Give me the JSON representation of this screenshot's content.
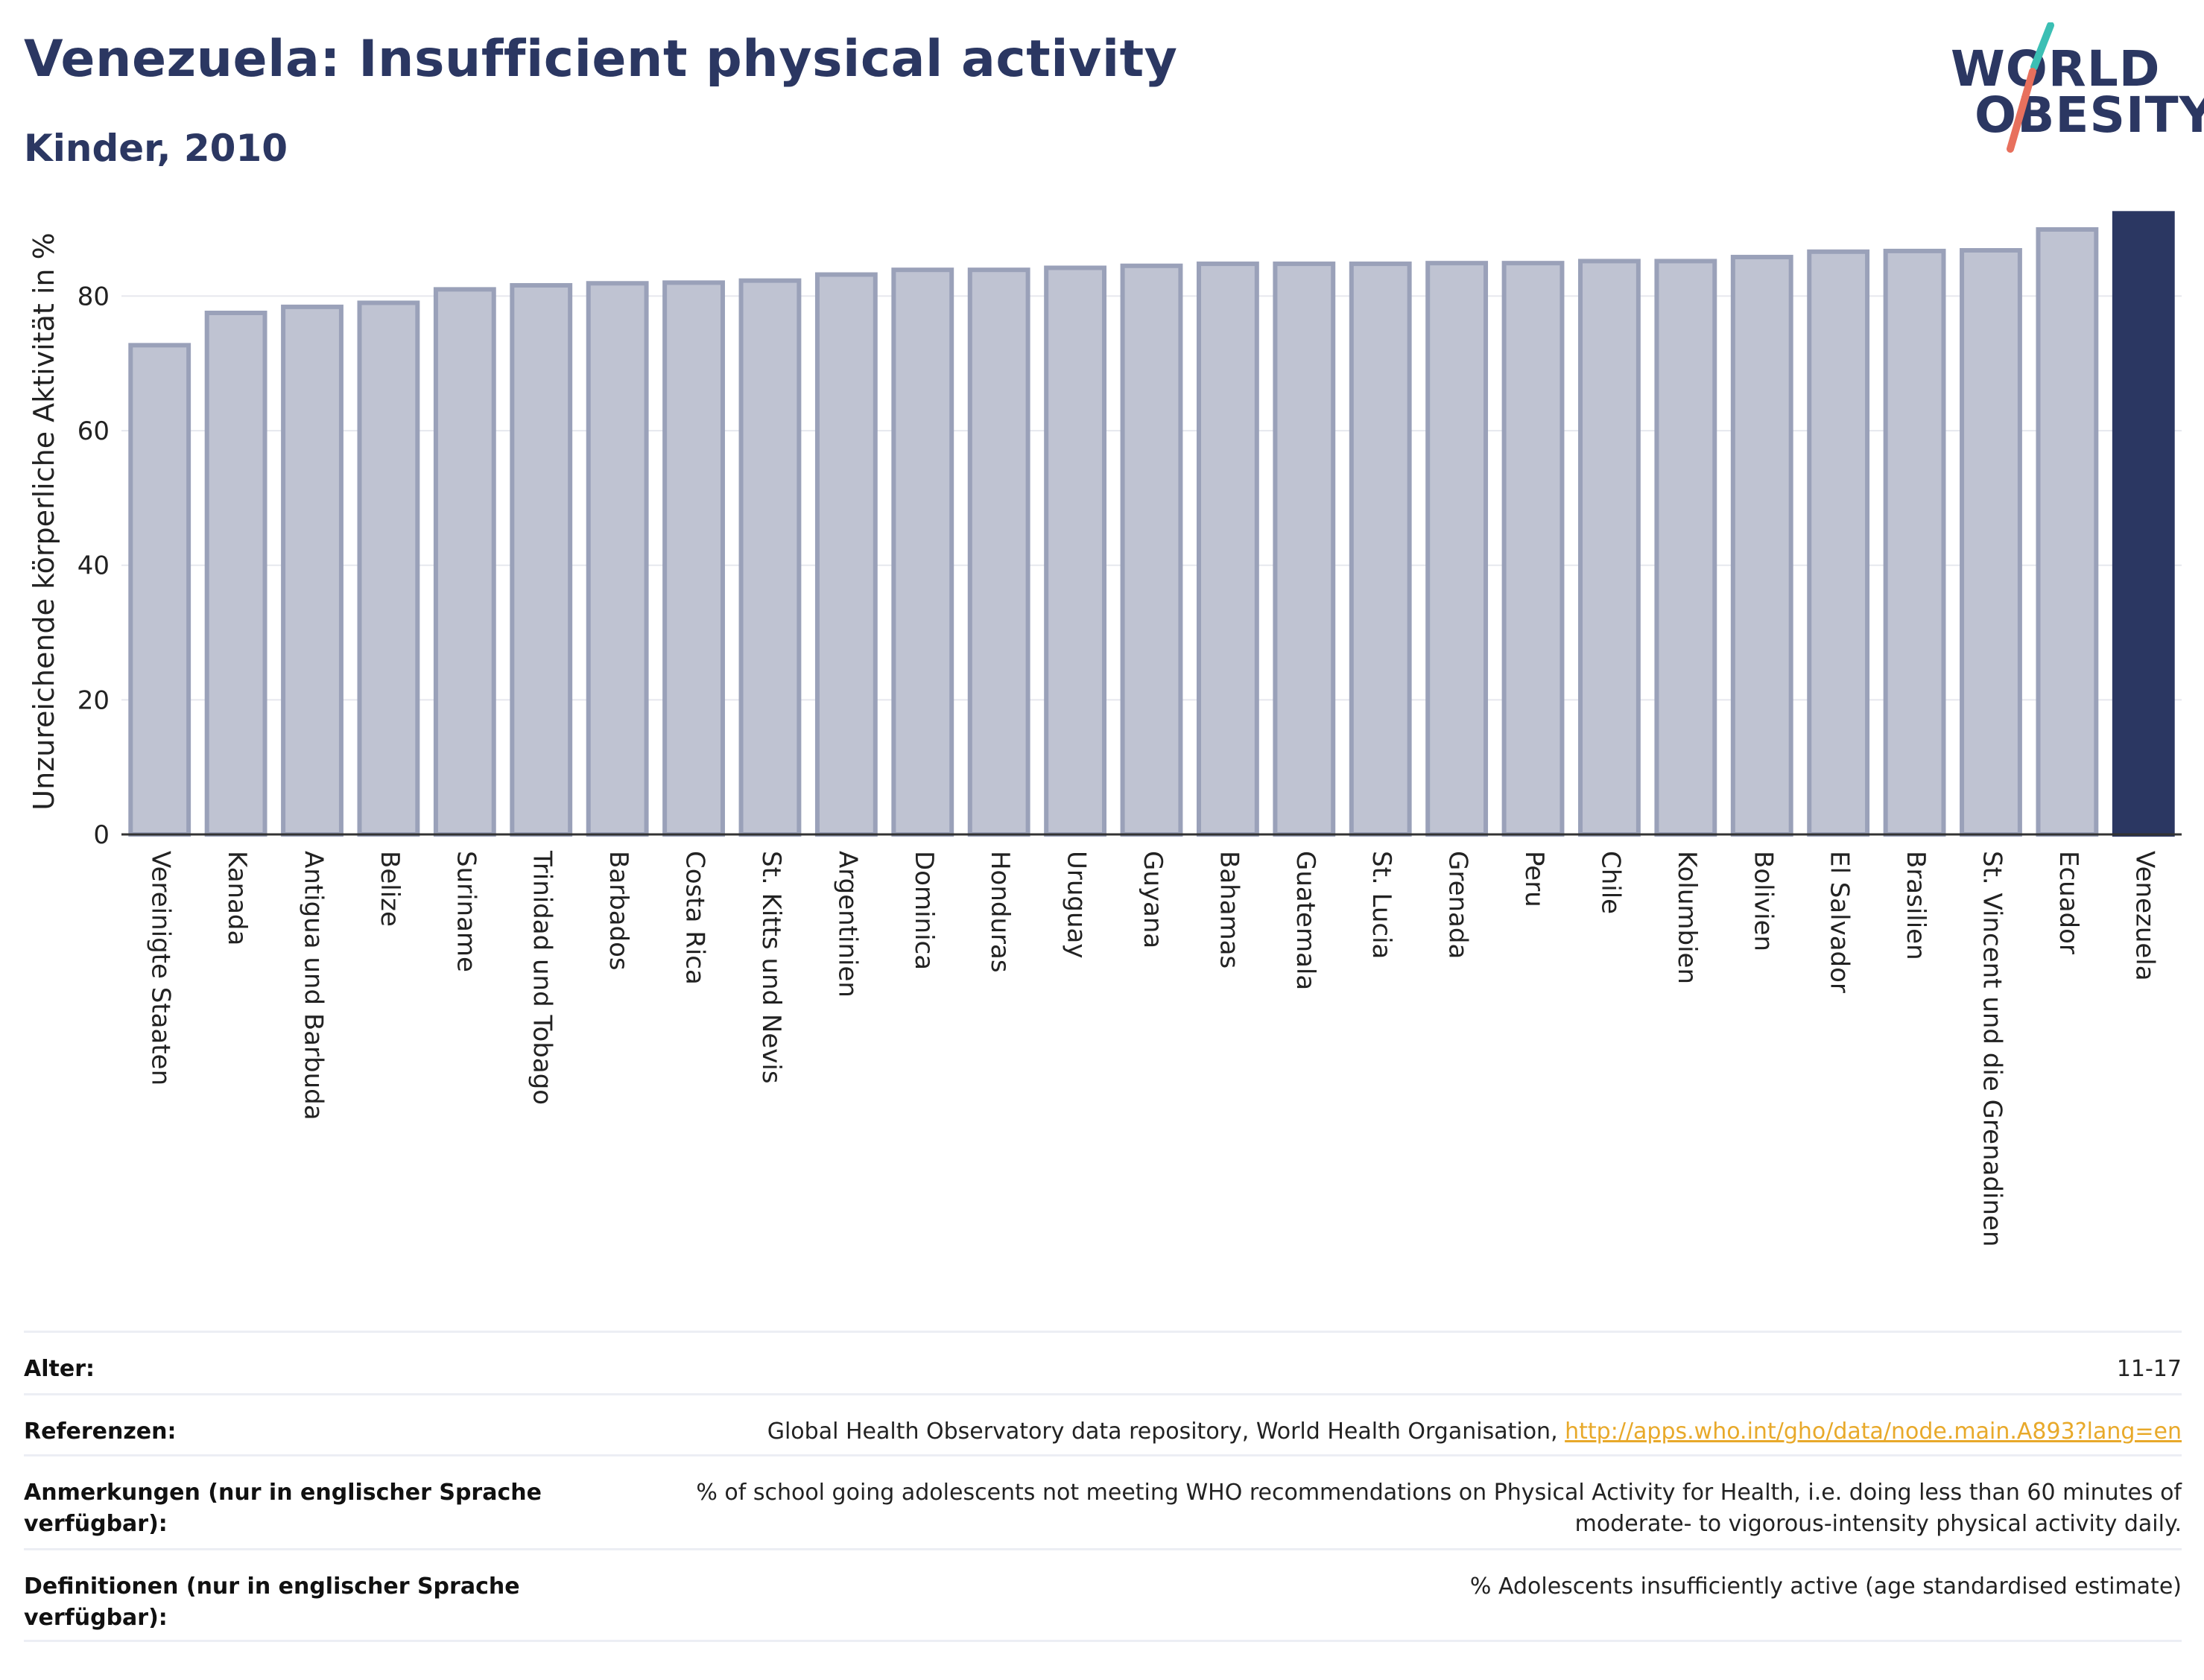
{
  "header": {
    "title": "Venezuela: Insufficient physical activity",
    "subtitle": "Kinder, 2010"
  },
  "logo": {
    "line1": "WORLD",
    "line2": "OBESITY",
    "accent_teal": "#3bbfb4",
    "accent_coral": "#e8705d"
  },
  "colors": {
    "bar": "#bfc3d2",
    "bar_border": "#9aa1b9",
    "highlight": "#2b3762",
    "grid": "#e6e8ee"
  },
  "chart_data": {
    "type": "bar",
    "ylabel": "Unzureichende körperliche Aktivität in %",
    "ylim": [
      0,
      93
    ],
    "yticks": [
      0,
      20,
      40,
      60,
      80
    ],
    "grid": true,
    "highlight": "Venezuela",
    "categories": [
      "Vereinigte Staaten",
      "Kanada",
      "Antigua und Barbuda",
      "Belize",
      "Suriname",
      "Trinidad und Tobago",
      "Barbados",
      "Costa Rica",
      "St. Kitts und Nevis",
      "Argentinien",
      "Dominica",
      "Honduras",
      "Uruguay",
      "Guyana",
      "Bahamas",
      "Guatemala",
      "St. Lucia",
      "Grenada",
      "Peru",
      "Chile",
      "Kolumbien",
      "Bolivien",
      "El Salvador",
      "Brasilien",
      "St. Vincent und die Grenadinen",
      "Ecuador",
      "Venezuela"
    ],
    "values": [
      72.7,
      77.5,
      78.4,
      79.0,
      81.0,
      81.6,
      81.9,
      82.0,
      82.3,
      83.2,
      83.9,
      83.9,
      84.2,
      84.5,
      84.8,
      84.8,
      84.8,
      84.9,
      84.9,
      85.2,
      85.2,
      85.8,
      86.6,
      86.7,
      86.8,
      89.9,
      92.3
    ]
  },
  "meta": {
    "rows": [
      {
        "label": "Alter:",
        "value": "11-17"
      },
      {
        "label": "Referenzen:",
        "value": "Global Health Observatory data repository, World Health Organisation, ",
        "link": "http://apps.who.int/gho/data/node.main.A893?lang=en"
      },
      {
        "label": "Anmerkungen (nur in englischer Sprache verfügbar):",
        "value": "% of school going adolescents not meeting WHO recommendations on Physical Activity for Health, i.e. doing less than 60 minutes of moderate- to vigorous-intensity physical activity daily."
      },
      {
        "label": "Definitionen (nur in englischer Sprache verfügbar):",
        "value": "% Adolescents insufficiently active (age standardised estimate)"
      }
    ]
  }
}
